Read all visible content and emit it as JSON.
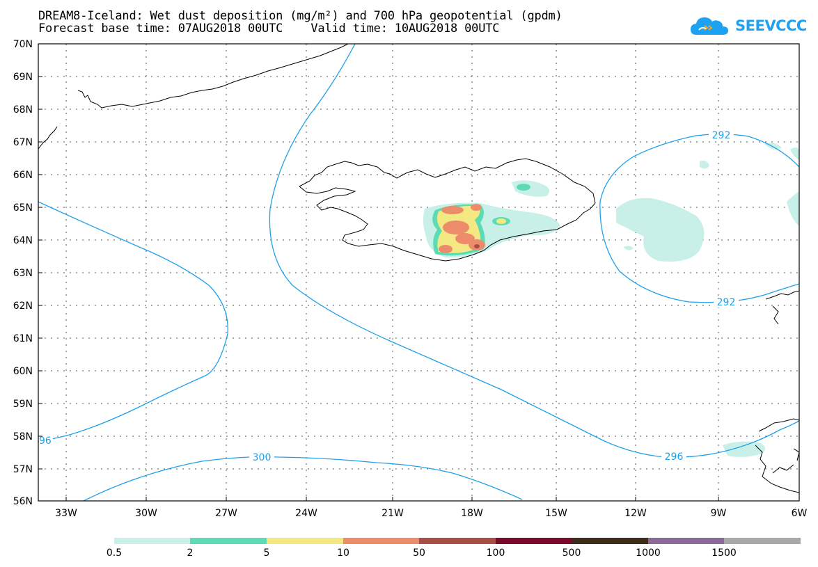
{
  "header": {
    "title_line1": "DREAM8-Iceland: Wet dust deposition (mg/m²) and 700 hPa geopotential (gpdm)",
    "title_line2": "Forecast base time: 07AUG2018 00UTC    Valid time: 10AUG2018 00UTC"
  },
  "logo": {
    "text": "SEEVCCC",
    "icon": "cloud-logo-icon",
    "color": "#1da1f2"
  },
  "map": {
    "lat_labels": [
      "70N",
      "69N",
      "68N",
      "67N",
      "66N",
      "65N",
      "64N",
      "63N",
      "62N",
      "61N",
      "60N",
      "59N",
      "58N",
      "57N",
      "56N"
    ],
    "lon_labels": [
      "33W",
      "30W",
      "27W",
      "24W",
      "21W",
      "18W",
      "15W",
      "12W",
      "9W",
      "6W"
    ],
    "contour_color": "#1ea0e8",
    "contour_labels": {
      "c292_top": "292",
      "c292_bottom": "292",
      "c296": "296",
      "c296_left": "96",
      "c300": "300"
    }
  },
  "legend": {
    "colors": [
      "#c8f0e8",
      "#5ddbb5",
      "#f4e882",
      "#ec8c6a",
      "#a84e44",
      "#7a0a2a",
      "#3e2c1c",
      "#8c6a98",
      "#a8a8a8"
    ],
    "labels": [
      "0.5",
      "2",
      "5",
      "10",
      "50",
      "100",
      "500",
      "1000",
      "1500"
    ]
  }
}
